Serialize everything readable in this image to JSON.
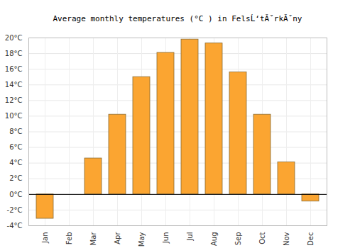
{
  "chart_data": {
    "type": "bar",
    "title": "Average monthly temperatures (°C ) in FelsĹ‘tĂˇrkĂˇny",
    "categories": [
      "Jan",
      "Feb",
      "Mar",
      "Apr",
      "May",
      "Jun",
      "Jul",
      "Aug",
      "Sep",
      "Oct",
      "Nov",
      "Dec"
    ],
    "values": [
      -3.1,
      0,
      4.6,
      10.2,
      15.0,
      18.1,
      19.8,
      19.3,
      15.6,
      10.2,
      4.1,
      -0.9
    ],
    "color": "#fba531",
    "ylim": [
      -4,
      20
    ],
    "yticks": [
      {
        "value": -4,
        "label": "-4°C"
      },
      {
        "value": -2,
        "label": "-2°C"
      },
      {
        "value": 0,
        "label": "0°C"
      },
      {
        "value": 2,
        "label": "2°C"
      },
      {
        "value": 4,
        "label": "4°C"
      },
      {
        "value": 6,
        "label": "6°C"
      },
      {
        "value": 8,
        "label": "8°C"
      },
      {
        "value": 10,
        "label": "10°C"
      },
      {
        "value": 12,
        "label": "12°C"
      },
      {
        "value": 14,
        "label": "14°C"
      },
      {
        "value": 16,
        "label": "16°C"
      },
      {
        "value": 18,
        "label": "18°C"
      },
      {
        "value": 20,
        "label": "20°C"
      }
    ],
    "grid": true
  }
}
